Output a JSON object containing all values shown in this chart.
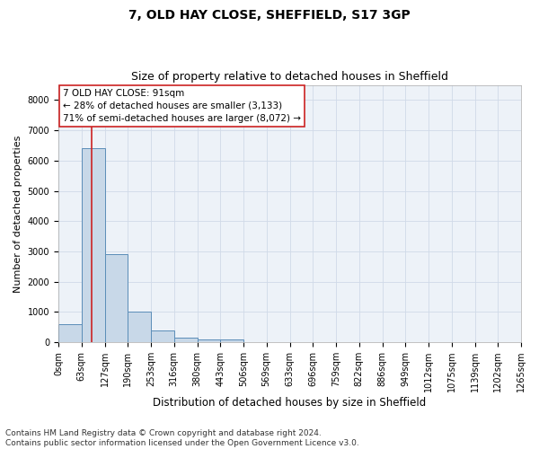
{
  "title1": "7, OLD HAY CLOSE, SHEFFIELD, S17 3GP",
  "title2": "Size of property relative to detached houses in Sheffield",
  "xlabel": "Distribution of detached houses by size in Sheffield",
  "ylabel": "Number of detached properties",
  "footnote": "Contains HM Land Registry data © Crown copyright and database right 2024.\nContains public sector information licensed under the Open Government Licence v3.0.",
  "bin_edges": [
    0,
    63,
    127,
    190,
    253,
    316,
    380,
    443,
    506,
    569,
    633,
    696,
    759,
    822,
    886,
    949,
    1012,
    1075,
    1139,
    1202,
    1265
  ],
  "bar_heights": [
    600,
    6400,
    2900,
    1000,
    380,
    160,
    100,
    90,
    0,
    0,
    0,
    0,
    0,
    0,
    0,
    0,
    0,
    0,
    0,
    0
  ],
  "bar_color": "#c8d8e8",
  "bar_edge_color": "#5b8db8",
  "bar_linewidth": 0.7,
  "vline_x": 91,
  "vline_color": "#cc2222",
  "vline_linewidth": 1.2,
  "annotation_text": "7 OLD HAY CLOSE: 91sqm\n← 28% of detached houses are smaller (3,133)\n71% of semi-detached houses are larger (8,072) →",
  "annotation_box_color": "#ffffff",
  "annotation_box_edge_color": "#cc2222",
  "ylim": [
    0,
    8500
  ],
  "yticks": [
    0,
    1000,
    2000,
    3000,
    4000,
    5000,
    6000,
    7000,
    8000
  ],
  "grid_color": "#d0dae8",
  "bg_color": "#edf2f8",
  "title1_fontsize": 10,
  "title2_fontsize": 9,
  "xlabel_fontsize": 8.5,
  "ylabel_fontsize": 8,
  "tick_fontsize": 7,
  "annot_fontsize": 7.5,
  "footnote_fontsize": 6.5
}
